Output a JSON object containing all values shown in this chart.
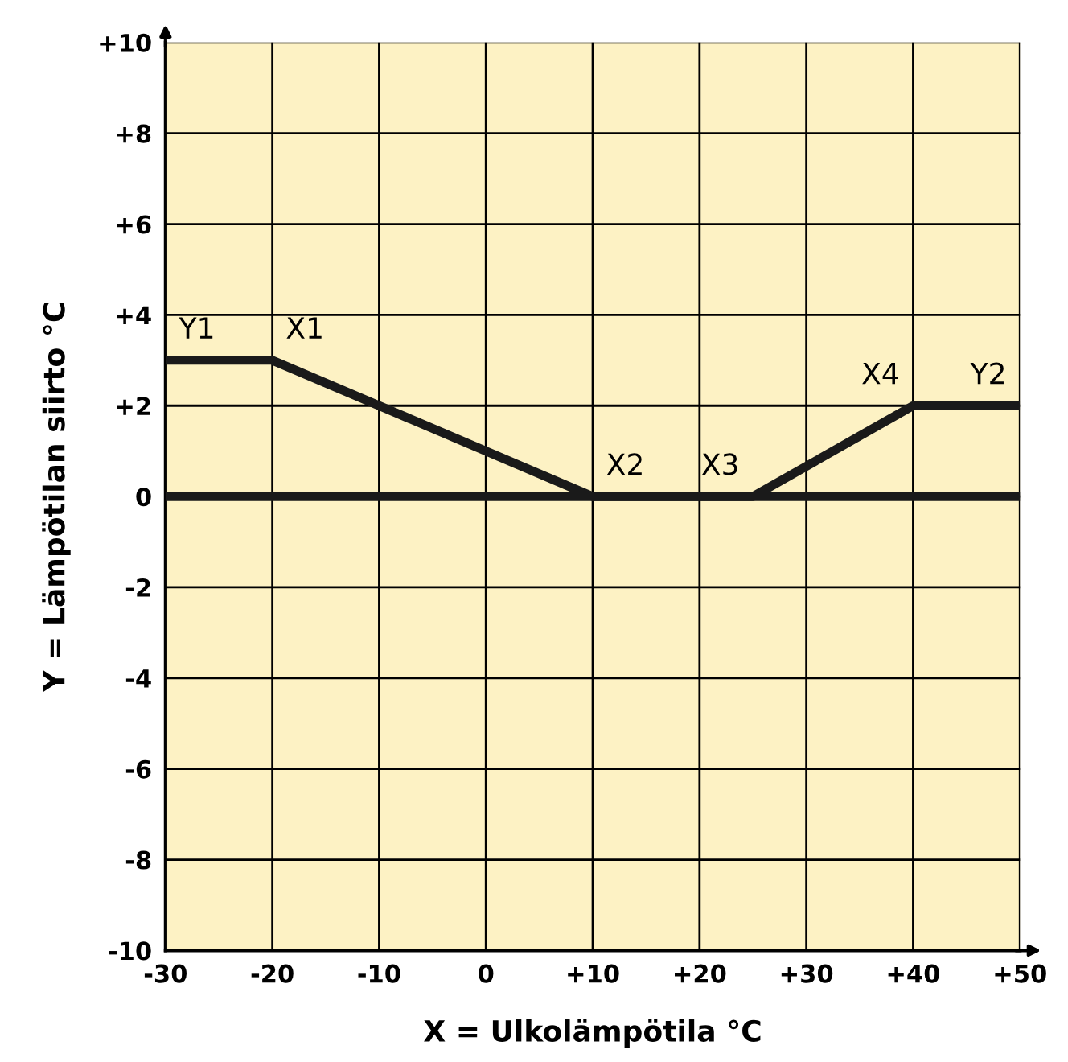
{
  "chart_data": {
    "type": "line",
    "xlabel": "X = Ulkolämpötila °C",
    "ylabel": "Y = Lämpötilan siirto °C",
    "x": [
      -30,
      -20,
      10,
      25,
      40,
      50
    ],
    "series": [
      {
        "color": "#1a1a1a",
        "values": [
          3,
          3,
          0,
          0,
          2,
          2
        ]
      }
    ],
    "xlim": [
      -30,
      50
    ],
    "ylim": [
      -10,
      10
    ],
    "xticks": [
      -30,
      -20,
      -10,
      0,
      {
        "value": 10,
        "label": "+10"
      },
      {
        "value": 20,
        "label": "+20"
      },
      {
        "value": 30,
        "label": "+30"
      },
      {
        "value": 40,
        "label": "+40"
      },
      {
        "value": 50,
        "label": "+50"
      }
    ],
    "yticks": [
      -10,
      -8,
      -6,
      -4,
      -2,
      0,
      {
        "value": 2,
        "label": "+2"
      },
      {
        "value": 4,
        "label": "+4"
      },
      {
        "value": 6,
        "label": "+6"
      },
      {
        "value": 8,
        "label": "+8"
      },
      {
        "value": 10,
        "label": "+10"
      }
    ],
    "ref_lines": [
      {
        "axis": "y",
        "value": 0,
        "color": "#1a1a1a"
      }
    ],
    "annotations": [
      {
        "text": "Y1",
        "x": -30,
        "y": 3
      },
      {
        "text": "X1",
        "x": -20,
        "y": 3
      },
      {
        "text": "X2",
        "x": 10,
        "y": 0
      },
      {
        "text": "X3",
        "x": 25,
        "y": 0
      },
      {
        "text": "X4",
        "x": 40,
        "y": 2
      },
      {
        "text": "Y2",
        "x": 50,
        "y": 2
      }
    ],
    "grid": true,
    "legend": false,
    "marker": "none",
    "line_style": "solid"
  }
}
